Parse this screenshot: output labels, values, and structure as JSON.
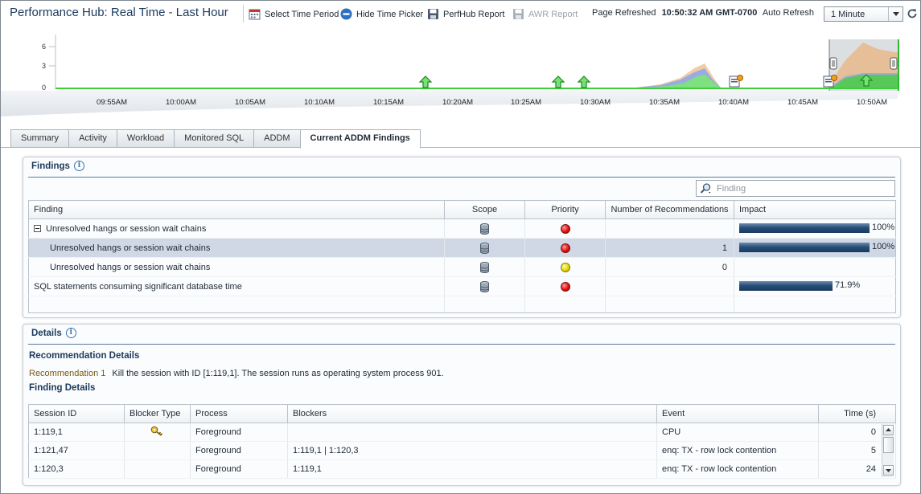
{
  "header": {
    "title": "Performance Hub: Real Time - Last Hour",
    "toolbar": {
      "select_time_period": "Select Time Period",
      "hide_time_picker": "Hide Time Picker",
      "perfhub_report": "PerfHub Report",
      "awr_report": "AWR Report"
    },
    "page_refreshed_label": "Page Refreshed",
    "page_refreshed_time": "10:50:32 AM GMT-0700",
    "auto_refresh_label": "Auto Refresh",
    "auto_refresh_value": "1 Minute"
  },
  "timeline": {
    "y_ticks": [
      "6",
      "3",
      "0"
    ],
    "x_ticks": [
      "09:55AM",
      "10:00AM",
      "10:05AM",
      "10:10AM",
      "10:15AM",
      "10:20AM",
      "10:25AM",
      "10:30AM",
      "10:35AM",
      "10:40AM",
      "10:45AM",
      "10:50AM"
    ]
  },
  "tabs": [
    {
      "label": "Summary",
      "active": false
    },
    {
      "label": "Activity",
      "active": false
    },
    {
      "label": "Workload",
      "active": false
    },
    {
      "label": "Monitored SQL",
      "active": false
    },
    {
      "label": "ADDM",
      "active": false
    },
    {
      "label": "Current ADDM Findings",
      "active": true
    }
  ],
  "findings": {
    "heading": "Findings",
    "search_placeholder": "Finding",
    "columns": {
      "finding": "Finding",
      "scope": "Scope",
      "priority": "Priority",
      "recommendations": "Number of Recommendations",
      "impact": "Impact"
    },
    "rows": [
      {
        "finding": "Unresolved hangs or session wait chains",
        "priority": "red",
        "recommendations": "",
        "impact_pct": 100,
        "impact_label": "100%"
      },
      {
        "finding": "Unresolved hangs or session wait chains",
        "priority": "red",
        "recommendations": "1",
        "impact_pct": 100,
        "impact_label": "100%"
      },
      {
        "finding": "Unresolved hangs or session wait chains",
        "priority": "yellow",
        "recommendations": "0",
        "impact_pct": null,
        "impact_label": ""
      },
      {
        "finding": "SQL statements consuming significant database time",
        "priority": "red",
        "recommendations": "",
        "impact_pct": 71.9,
        "impact_label": "71.9%"
      }
    ]
  },
  "details": {
    "heading": "Details",
    "recommendation_details_heading": "Recommendation Details",
    "recommendation_label": "Recommendation 1",
    "recommendation_text": "Kill the session with ID [1:119,1]. The session runs as operating system process 901.",
    "finding_details_heading": "Finding Details",
    "columns": {
      "session_id": "Session ID",
      "blocker_type": "Blocker Type",
      "process": "Process",
      "blockers": "Blockers",
      "event": "Event",
      "time": "Time (s)"
    },
    "rows": [
      {
        "session_id": "1:119,1",
        "blocker_type": "key-icon",
        "process": "Foreground",
        "blockers": "",
        "event": "CPU",
        "time": "0"
      },
      {
        "session_id": "1:121,47",
        "blocker_type": "",
        "process": "Foreground",
        "blockers": "1:119,1 | 1:120,3",
        "event": "enq: TX - row lock contention",
        "time": "5"
      },
      {
        "session_id": "1:120,3",
        "blocker_type": "",
        "process": "Foreground",
        "blockers": "1:119,1",
        "event": "enq: TX - row lock contention",
        "time": "24"
      }
    ]
  }
}
